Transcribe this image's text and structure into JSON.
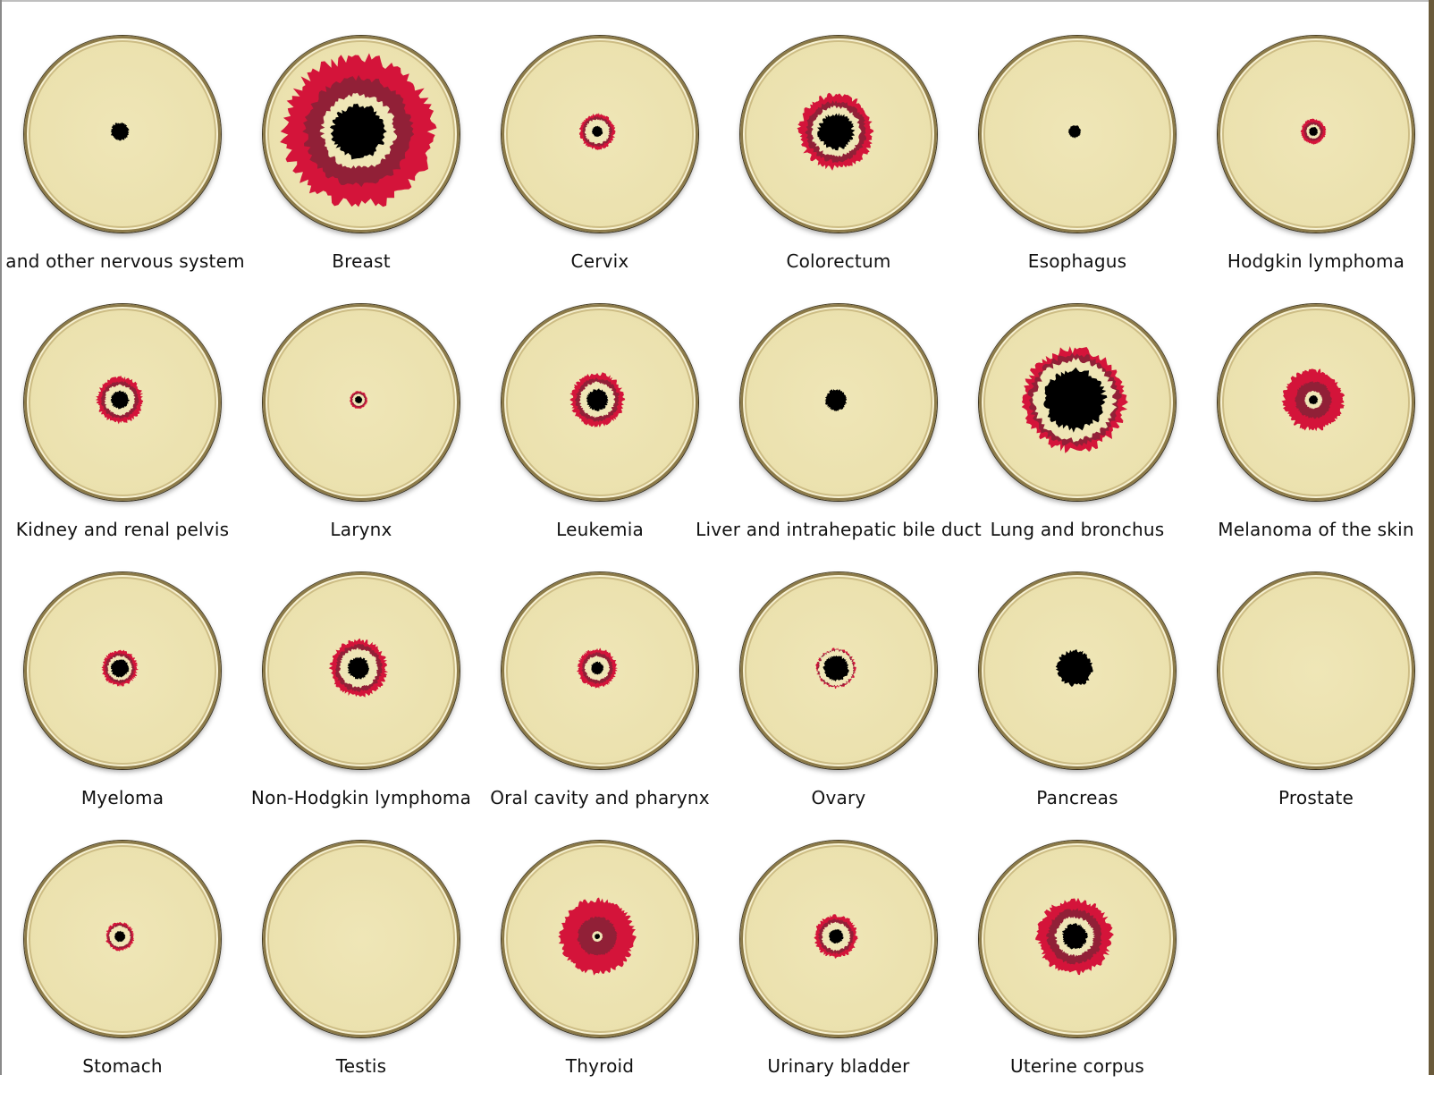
{
  "colors": {
    "agar": "#ebe1ae",
    "core": "#000000",
    "halo": "#efe6b7",
    "ring": "#d4143a",
    "ring_dark": "#5a2a34"
  },
  "dishes": [
    {
      "label": "rain and other nervous system",
      "core": 0.1,
      "halo": 0.0,
      "ring": 0.0
    },
    {
      "label": "Breast",
      "core": 0.3,
      "halo": 0.42,
      "ring": 0.85
    },
    {
      "label": "Cervix",
      "core": 0.06,
      "halo": 0.14,
      "ring": 0.2
    },
    {
      "label": "Colorectum",
      "core": 0.2,
      "halo": 0.28,
      "ring": 0.42
    },
    {
      "label": "Esophagus",
      "core": 0.07,
      "halo": 0.0,
      "ring": 0.0
    },
    {
      "label": "Hodgkin lymphoma",
      "core": 0.05,
      "halo": 0.08,
      "ring": 0.14
    },
    {
      "label": "Kidney and renal pelvis",
      "core": 0.1,
      "halo": 0.17,
      "ring": 0.26
    },
    {
      "label": "Larynx",
      "core": 0.04,
      "halo": 0.07,
      "ring": 0.1
    },
    {
      "label": "Leukemia",
      "core": 0.12,
      "halo": 0.2,
      "ring": 0.3
    },
    {
      "label": "Liver and intrahepatic bile duct",
      "core": 0.12,
      "halo": 0.0,
      "ring": 0.0
    },
    {
      "label": "Lung and bronchus",
      "core": 0.34,
      "halo": 0.46,
      "ring": 0.58
    },
    {
      "label": "Melanoma of the skin",
      "core": 0.05,
      "halo": 0.1,
      "ring": 0.34
    },
    {
      "label": "Myeloma",
      "core": 0.1,
      "halo": 0.14,
      "ring": 0.2
    },
    {
      "label": "Non-Hodgkin lymphoma",
      "core": 0.12,
      "halo": 0.22,
      "ring": 0.32
    },
    {
      "label": "Oral cavity and pharynx",
      "core": 0.07,
      "halo": 0.14,
      "ring": 0.22
    },
    {
      "label": "Ovary",
      "core": 0.14,
      "halo": 0.2,
      "ring": 0.22
    },
    {
      "label": "Pancreas",
      "core": 0.2,
      "halo": 0.0,
      "ring": 0.0
    },
    {
      "label": "Prostate",
      "core": 0.0,
      "halo": 0.0,
      "ring": 0.0
    },
    {
      "label": "Stomach",
      "core": 0.06,
      "halo": 0.12,
      "ring": 0.16
    },
    {
      "label": "Testis",
      "core": 0.0,
      "halo": 0.0,
      "ring": 0.0
    },
    {
      "label": "Thyroid",
      "core": 0.03,
      "halo": 0.06,
      "ring": 0.42
    },
    {
      "label": "Urinary bladder",
      "core": 0.08,
      "halo": 0.16,
      "ring": 0.24
    },
    {
      "label": "Uterine corpus",
      "core": 0.14,
      "halo": 0.22,
      "ring": 0.42
    }
  ]
}
